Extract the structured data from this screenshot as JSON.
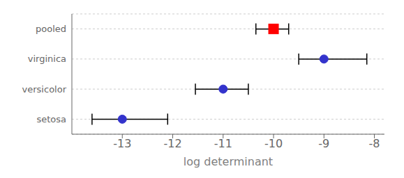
{
  "chart_data": {
    "type": "errorbar",
    "xlabel": "log determinant",
    "categories": [
      "pooled",
      "virginica",
      "versicolor",
      "setosa"
    ],
    "series": [
      {
        "color": "red",
        "marker": "square",
        "values": [
          -10.0,
          null,
          null,
          null
        ],
        "error_left": [
          0.35,
          null,
          null,
          null
        ],
        "error_right": [
          0.3,
          null,
          null,
          null
        ]
      },
      {
        "color": "#3333cc",
        "marker": "circle",
        "values": [
          null,
          -9.0,
          -11.0,
          -13.0
        ],
        "error_left": [
          null,
          0.5,
          0.55,
          0.6
        ],
        "error_right": [
          null,
          0.85,
          0.5,
          0.9
        ]
      }
    ],
    "xlim": [
      -14.0,
      -7.8
    ],
    "xticks": [
      -13,
      -12,
      -11,
      -10,
      -9,
      -8
    ],
    "grid": true
  }
}
